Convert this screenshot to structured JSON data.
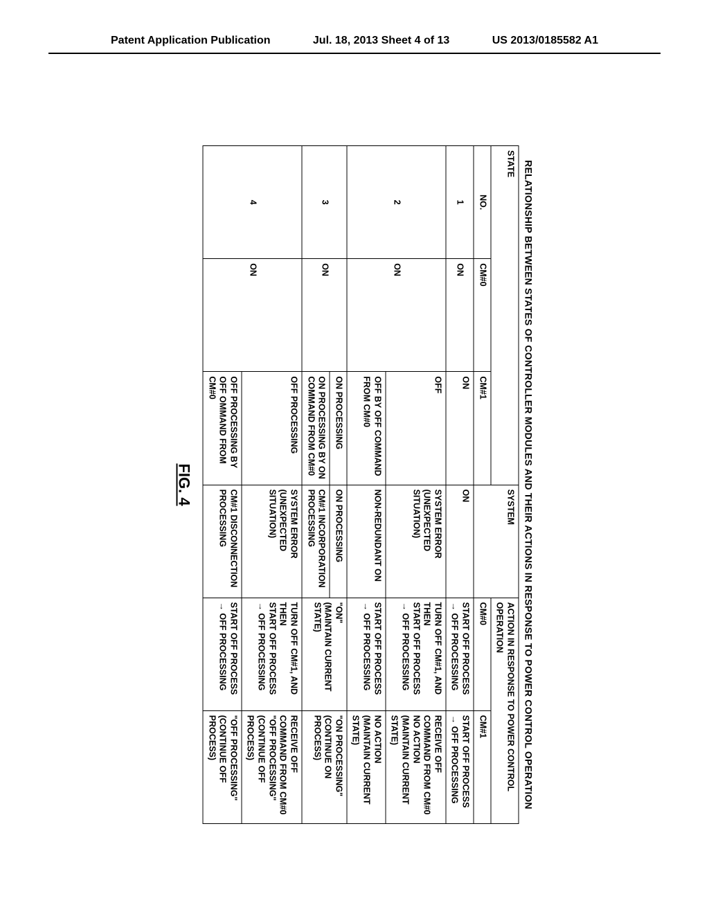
{
  "header": {
    "left": "Patent Application Publication",
    "center": "Jul. 18, 2013  Sheet 4 of 13",
    "right": "US 2013/0185582 A1"
  },
  "table": {
    "title": "RELATIONSHIP BETWEEN STATES OF CONTROLLER MODULES AND THEIR ACTIONS IN RESPONSE TO POWER CONTROL OPERATION",
    "figure_label": "FIG. 4",
    "group_headers": {
      "state": "STATE",
      "action": "ACTION IN RESPONSE TO POWER CONTROL OPERATION"
    },
    "col_headers": {
      "no": "NO.",
      "cm0": "CM#0",
      "cm1": "CM#1",
      "system": "SYSTEM",
      "act_cm0": "CM#0",
      "act_cm1": "CM#1"
    },
    "rows": [
      {
        "no": "1",
        "cm0": "ON",
        "cm1": "ON",
        "system": "ON",
        "act_cm0": "START OFF PROCESS\n→ OFF PROCESSING",
        "act_cm1": "START OFF PROCESS\n→ OFF PROCESSING",
        "dashed": false,
        "span_no": 1,
        "span_cm0": 1
      },
      {
        "no": "2",
        "cm0": "ON",
        "cm1": "OFF",
        "system": "SYSTEM ERROR\n(UNEXPECTED SITUATION)",
        "act_cm0": "TURN OFF CM#1, AND THEN\nSTART OFF PROCESS\n→ OFF PROCESSING",
        "act_cm1": "RECEIVE OFF COMMAND FROM CM#0\nNO ACTION\n(MAINTAIN CURRENT STATE)",
        "dashed": false,
        "span_no": 2,
        "span_cm0": 2
      },
      {
        "no": "",
        "cm0": "",
        "cm1": "OFF BY OFF COMMAND FROM CM#0",
        "system": "NON-REDUNDANT ON",
        "act_cm0": "START OFF PROCESS\n→ OFF PROCESSING",
        "act_cm1": "NO ACTION\n(MAINTAIN CURRENT STATE)",
        "dashed": true,
        "span_no": 0,
        "span_cm0": 0
      },
      {
        "no": "3",
        "cm0": "ON",
        "cm1": "ON PROCESSING",
        "system": "ON PROCESSING",
        "act_cm0": "\"ON\"\n(MAINTAIN CURRENT STATE)",
        "act_cm1": "\"ON PROCESSING\"\n(CONTINUE ON PROCESS)",
        "dashed": false,
        "span_no": 2,
        "span_cm0": 2
      },
      {
        "no": "",
        "cm0": "",
        "cm1": "ON PROCESSING BY ON COMMAND FROM CM#0",
        "system": "CM#1 INCORPORATION PROCESSING",
        "act_cm0": "",
        "act_cm1": "",
        "dashed": true,
        "span_no": 0,
        "span_cm0": 0
      },
      {
        "no": "4",
        "cm0": "ON",
        "cm1": "OFF PROCESSING",
        "system": "SYSTEM ERROR\n(UNEXPECTED SITUATION)",
        "act_cm0": "TURN OFF CM#1, AND THEN\nSTART OFF PROCESS\n→ OFF PROCESSING",
        "act_cm1": "RECEIVE OFF COMMAND FROM CM#0\n\"OFF PROCESSING\"\n(CONTINUE OFF PROCESS)",
        "dashed": false,
        "span_no": 2,
        "span_cm0": 2
      },
      {
        "no": "",
        "cm0": "",
        "cm1": "OFF PROCESSING BY OFF OMMAND FROM CM#0",
        "system": "CM#1 DISCONNECTION PROCESSING",
        "act_cm0": "START OFF PROCESS\n→ OFF PROCESSING",
        "act_cm1": "\"OFF PROCESSING\"\n(CONTINUE OFF PROCESS)",
        "dashed": true,
        "span_no": 0,
        "span_cm0": 0
      }
    ]
  }
}
